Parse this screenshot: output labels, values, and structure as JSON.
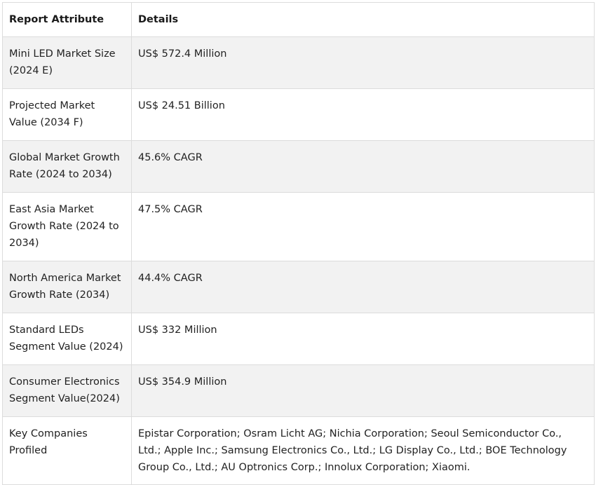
{
  "table": {
    "headers": [
      "Report Attribute",
      "Details"
    ],
    "rows": [
      {
        "attribute": "Mini LED Market Size (2024 E)",
        "details": "US$ 572.4 Million"
      },
      {
        "attribute": "Projected Market Value (2034 F)",
        "details": "US$ 24.51 Billion"
      },
      {
        "attribute": "Global Market Growth Rate (2024 to 2034)",
        "details": "45.6% CAGR"
      },
      {
        "attribute": "East Asia Market Growth Rate (2024 to 2034)",
        "details": "47.5% CAGR"
      },
      {
        "attribute": "North America Market Growth Rate (2034)",
        "details": "44.4% CAGR"
      },
      {
        "attribute": "Standard LEDs Segment Value (2024)",
        "details": "US$ 332 Million"
      },
      {
        "attribute": "Consumer Electronics Segment Value(2024)",
        "details": "US$ 354.9 Million"
      },
      {
        "attribute": "Key Companies Profiled",
        "details": "Epistar Corporation; Osram Licht AG; Nichia Corporation; Seoul Semiconductor Co., Ltd.; Apple Inc.; Samsung Electronics Co., Ltd.; LG Display Co., Ltd.; BOE Technology Group Co., Ltd.; AU Optronics Corp.; Innolux Corporation; Xiaomi."
      }
    ]
  }
}
